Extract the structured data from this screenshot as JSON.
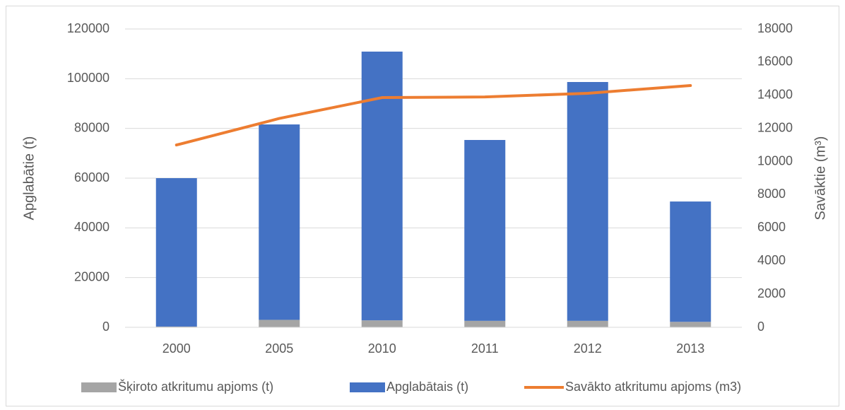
{
  "chart_data": {
    "type": "bar",
    "categories": [
      "2000",
      "2005",
      "2010",
      "2011",
      "2012",
      "2013"
    ],
    "series": [
      {
        "name": "Šķiroto atkritumu apjoms (t)",
        "color": "#a5a5a5",
        "type": "bar",
        "values": [
          300,
          3000,
          2800,
          2600,
          2600,
          2200
        ]
      },
      {
        "name": "Apglabātais (t)",
        "color": "#4472c4",
        "type": "bar",
        "values": [
          59700,
          78600,
          108100,
          72750,
          96070,
          48400
        ]
      },
      {
        "name": "Savākto atkritumu apjoms (m3)",
        "color": "#ed7d31",
        "type": "line",
        "axis": "y2",
        "values": [
          11000,
          12600,
          13860,
          13900,
          14120,
          14590
        ]
      }
    ],
    "ylabel": "Apglabātie (t)",
    "y2label": "Savāktie (m³)",
    "ylim": [
      0,
      120000
    ],
    "yticks": [
      0,
      20000,
      40000,
      60000,
      80000,
      100000,
      120000
    ],
    "y2lim": [
      0,
      18000
    ],
    "y2ticks": [
      0,
      2000,
      4000,
      6000,
      8000,
      10000,
      12000,
      14000,
      16000,
      18000
    ],
    "stacked": true,
    "grid": true,
    "legend": "bottom"
  }
}
